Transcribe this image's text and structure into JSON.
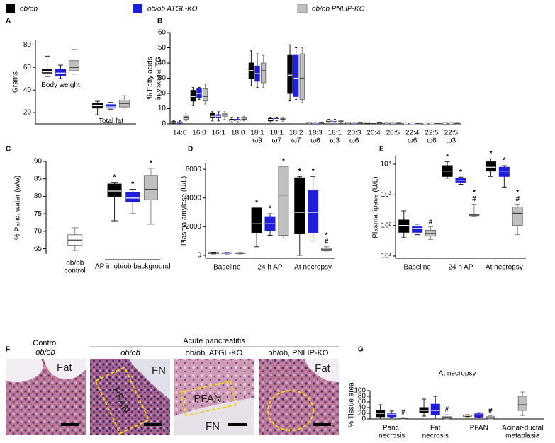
{
  "legend": [
    {
      "name": "ob/ob",
      "color": "#000000"
    },
    {
      "name": "ob/ob ATGL-KO",
      "color": "#1f1fd8"
    },
    {
      "name": "ob/ob PNLIP-KO",
      "color": "#c0c0c0"
    }
  ],
  "panel_letters": [
    "A",
    "B",
    "C",
    "D",
    "E",
    "F",
    "G"
  ],
  "chart_data": [
    {
      "type": "box",
      "ylabel": "Grams",
      "ylim": [
        10,
        84
      ],
      "yticks": [
        20,
        40,
        60,
        80
      ],
      "categories": [
        "Body weight",
        "Total fat"
      ],
      "category_label_position": "inside",
      "series": [
        {
          "color": "#000000",
          "values": [
            [
              52,
              55,
              56,
              58,
              70
            ],
            [
              18,
              24,
              26,
              28,
              30
            ]
          ]
        },
        {
          "color": "#1f1fd8",
          "values": [
            [
              50,
              53,
              55,
              58,
              62
            ],
            [
              23,
              24,
              25,
              27,
              29
            ]
          ]
        },
        {
          "color": "#c0c0c0",
          "values": [
            [
              54,
              57,
              60,
              66,
              76
            ],
            [
              24,
              25,
              28,
              31,
              35
            ]
          ]
        }
      ]
    },
    {
      "type": "box",
      "ylabel": [
        "% Fatty acids",
        "in visceral TG"
      ],
      "ylim": [
        0,
        60
      ],
      "yticks": [
        0,
        10,
        20,
        30,
        40,
        50,
        60
      ],
      "categories": [
        [
          "14:0"
        ],
        [
          "16:0"
        ],
        [
          "16:1"
        ],
        [
          "18:0"
        ],
        [
          "18:1",
          "ω9"
        ],
        [
          "18:1",
          "ω7"
        ],
        [
          "18:2",
          "ω7"
        ],
        [
          "18:3",
          "ω6"
        ],
        [
          "18:1",
          "ω3"
        ],
        [
          "20:3",
          "ω6"
        ],
        [
          "20:4"
        ],
        [
          "20:5"
        ],
        [
          "22:4",
          "ω6"
        ],
        [
          "22:5",
          "ω6"
        ],
        [
          "22:5",
          "ω3"
        ]
      ],
      "series": [
        {
          "color": "#000000",
          "values": [
            [
              0.3,
              0.6,
              1,
              1.5,
              2
            ],
            [
              12,
              15,
              18,
              22,
              24
            ],
            [
              2,
              4,
              5,
              7,
              8
            ],
            [
              1,
              2,
              2,
              3,
              4
            ],
            [
              25,
              30,
              35,
              40,
              48
            ],
            [
              1,
              2,
              3,
              3.5,
              4
            ],
            [
              15,
              20,
              32,
              45,
              52
            ],
            [
              0.2,
              0.4,
              0.5,
              0.6,
              0.8
            ],
            [
              1,
              1.5,
              2,
              2.5,
              3
            ],
            [
              0.2,
              0.4,
              0.5,
              0.6,
              0.8
            ],
            [
              0.3,
              0.5,
              0.7,
              0.9,
              1.1
            ],
            [
              0.2,
              0.3,
              0.4,
              0.5,
              0.6
            ],
            [
              0.1,
              0.15,
              0.2,
              0.25,
              0.3
            ],
            [
              0.1,
              0.15,
              0.2,
              0.25,
              0.3
            ],
            [
              0.1,
              0.2,
              0.3,
              0.4,
              0.5
            ]
          ]
        },
        {
          "color": "#1f1fd8",
          "values": [
            [
              0.3,
              0.6,
              1,
              1.3,
              2
            ],
            [
              16,
              17,
              20,
              23,
              24
            ],
            [
              2,
              4,
              5,
              6,
              8
            ],
            [
              1,
              2,
              2,
              3,
              4
            ],
            [
              24,
              28,
              33,
              38,
              46
            ],
            [
              2,
              2.5,
              3,
              3.5,
              4
            ],
            [
              16,
              18,
              30,
              45,
              50
            ],
            [
              0.2,
              0.4,
              0.5,
              0.6,
              0.8
            ],
            [
              1,
              1.5,
              2,
              2.5,
              3
            ],
            [
              0.2,
              0.4,
              0.5,
              0.6,
              0.8
            ],
            [
              0.3,
              0.5,
              0.7,
              0.9,
              1.1
            ],
            [
              0.2,
              0.3,
              0.4,
              0.5,
              0.6
            ],
            [
              0.1,
              0.15,
              0.2,
              0.25,
              0.3
            ],
            [
              0.1,
              0.15,
              0.2,
              0.25,
              0.3
            ],
            [
              0.1,
              0.2,
              0.3,
              0.4,
              0.5
            ]
          ]
        },
        {
          "color": "#c0c0c0",
          "values": [
            [
              2,
              3,
              4,
              5,
              7
            ],
            [
              13,
              15,
              18,
              23,
              26
            ],
            [
              3,
              5,
              6,
              7,
              8
            ],
            [
              2,
              3,
              3,
              4,
              5
            ],
            [
              24,
              27,
              35,
              40,
              45
            ],
            [
              1.5,
              2.5,
              3,
              3.5,
              4
            ],
            [
              14,
              16,
              30,
              46,
              50
            ],
            [
              0.2,
              0.4,
              0.5,
              0.6,
              0.8
            ],
            [
              0.5,
              1,
              1.5,
              2,
              2.5
            ],
            [
              0.2,
              0.4,
              0.5,
              0.6,
              0.8
            ],
            [
              0.3,
              0.5,
              0.7,
              0.9,
              1.1
            ],
            [
              0.2,
              0.3,
              0.4,
              0.5,
              0.6
            ],
            [
              0.1,
              0.15,
              0.2,
              0.25,
              0.3
            ],
            [
              0.1,
              0.15,
              0.2,
              0.25,
              0.3
            ],
            [
              0.1,
              0.2,
              0.3,
              0.4,
              0.5
            ]
          ]
        }
      ]
    },
    {
      "type": "box",
      "ylabel": "% Panc. water (w/w)",
      "ylim": [
        63.5,
        90
      ],
      "yticks": [
        65,
        70,
        75,
        80,
        85,
        90
      ],
      "categories": [
        [
          "ob/ob",
          "control"
        ],
        "AP in ob/ob background"
      ],
      "category_bracket": true,
      "series": [
        {
          "color": "#ffffff",
          "values": [
            [
              64.5,
              66,
              67.5,
              69,
              71
            ],
            null
          ]
        },
        {
          "color": "#000000",
          "values": [
            null,
            [
              73,
              80,
              81.5,
              83.5,
              84
            ]
          ],
          "labels": [
            null,
            [
              "*"
            ]
          ]
        },
        {
          "color": "#1f1fd8",
          "values": [
            null,
            [
              75,
              78.5,
              79.5,
              81,
              82
            ]
          ],
          "labels": [
            null,
            [
              "*"
            ]
          ]
        },
        {
          "color": "#c0c0c0",
          "values": [
            null,
            [
              72,
              79,
              82,
              86,
              88
            ]
          ],
          "labels": [
            null,
            [
              "*"
            ]
          ]
        }
      ]
    },
    {
      "type": "box",
      "ylabel": "Plasma amylase (U/L)",
      "ylim": [
        -200,
        6400
      ],
      "yticks": [
        0,
        2000,
        4000,
        6000
      ],
      "categories": [
        "Baseline",
        "24 h AP",
        "At necropsy"
      ],
      "series": [
        {
          "color": "#000000",
          "values": [
            [
              100,
              130,
              160,
              190,
              220
            ],
            [
              600,
              1600,
              2200,
              3300,
              3300
            ],
            [
              0,
              1500,
              3000,
              5400,
              5500
            ]
          ],
          "labels": [
            null,
            [
              "*"
            ],
            [
              "*"
            ]
          ]
        },
        {
          "color": "#1f1fd8",
          "values": [
            [
              100,
              120,
              150,
              180,
              200
            ],
            [
              1400,
              1700,
              2200,
              2700,
              2900
            ],
            [
              1000,
              1600,
              3000,
              4500,
              5500
            ]
          ],
          "labels": [
            null,
            [
              "*"
            ],
            [
              "*"
            ]
          ]
        },
        {
          "color": "#c0c0c0",
          "values": [
            [
              100,
              130,
              150,
              180,
              210
            ],
            [
              1200,
              1400,
              4200,
              6200,
              6200
            ],
            [
              300,
              350,
              400,
              500,
              600
            ]
          ],
          "labels": [
            null,
            [
              "*"
            ],
            [
              "*",
              "#"
            ]
          ]
        }
      ]
    },
    {
      "type": "box",
      "ylabel": "Plasma lipase (U/L)",
      "log": true,
      "ylim": [
        8.5,
        18000
      ],
      "yticks": [
        {
          "value": 10,
          "label": "10¹"
        },
        {
          "value": 100,
          "label": "10²"
        },
        {
          "value": 1000,
          "label": "10³"
        },
        {
          "value": 10000,
          "label": "10⁴"
        }
      ],
      "categories": [
        "Baseline",
        "24 h AP",
        "At necropsy"
      ],
      "series": [
        {
          "color": "#000000",
          "values": [
            [
              40,
              60,
              100,
              150,
              300
            ],
            [
              3500,
              4000,
              6000,
              9000,
              12000
            ],
            [
              4000,
              6000,
              8000,
              12000,
              15000
            ]
          ],
          "labels": [
            null,
            [
              "*"
            ],
            [
              "*"
            ]
          ]
        },
        {
          "color": "#1f1fd8",
          "values": [
            [
              50,
              60,
              80,
              90,
              110
            ],
            [
              2200,
              2600,
              3000,
              3500,
              3800
            ],
            [
              1800,
              4000,
              6000,
              8000,
              9000
            ]
          ],
          "labels": [
            null,
            [
              "*"
            ],
            [
              "*"
            ]
          ]
        },
        {
          "color": "#c0c0c0",
          "values": [
            [
              35,
              45,
              55,
              70,
              90
            ],
            [
              200,
              210,
              220,
              230,
              500
            ],
            [
              50,
              100,
              250,
              400,
              500
            ]
          ],
          "labels": [
            [
              "#"
            ],
            [
              "*",
              "#"
            ],
            [
              "*",
              "#"
            ]
          ]
        }
      ]
    },
    {
      "type": "box",
      "title": "At necropsy",
      "ylabel": "% Tissue area",
      "ylim": [
        0,
        100
      ],
      "yticks": [
        0,
        20,
        40,
        60,
        80,
        100
      ],
      "categories": [
        [
          "Panc.",
          "necrosis"
        ],
        [
          "Fat",
          "necrosis"
        ],
        [
          "PFAN"
        ],
        [
          "Acinar-ductal",
          "metaplasia"
        ]
      ],
      "series": [
        {
          "color": "#000000",
          "values": [
            [
              0,
              8,
              20,
              30,
              50
            ],
            [
              10,
              22,
              30,
              40,
              70
            ],
            [
              8,
              10,
              12,
              13,
              15
            ],
            null
          ]
        },
        {
          "color": "#1f1fd8",
          "values": [
            [
              5,
              8,
              15,
              18,
              28
            ],
            [
              0,
              15,
              30,
              52,
              80
            ],
            [
              5,
              7,
              14,
              18,
              22
            ],
            null
          ]
        },
        {
          "color": "#c0c0c0",
          "values": [
            [
              0,
              1,
              2,
              3,
              5
            ],
            [
              0,
              2,
              5,
              8,
              15
            ],
            [
              0,
              2,
              4,
              8,
              12
            ],
            [
              12,
              30,
              50,
              80,
              95
            ]
          ],
          "labels": [
            [
              "#"
            ],
            [
              "#"
            ],
            [
              "#"
            ],
            null
          ]
        }
      ]
    }
  ],
  "histology": {
    "control_header": [
      "Control",
      "ob/ob"
    ],
    "group_header": "Acute pancreatitis",
    "column_headers": [
      "ob/ob",
      "ob/ob, ATGL-KO",
      "ob/ob, PNLIP-KO"
    ],
    "image_labels": [
      [
        "Fat"
      ],
      [
        "FN",
        "PFAN"
      ],
      [
        "PFAN",
        "FN"
      ],
      [
        "Fat"
      ]
    ]
  }
}
